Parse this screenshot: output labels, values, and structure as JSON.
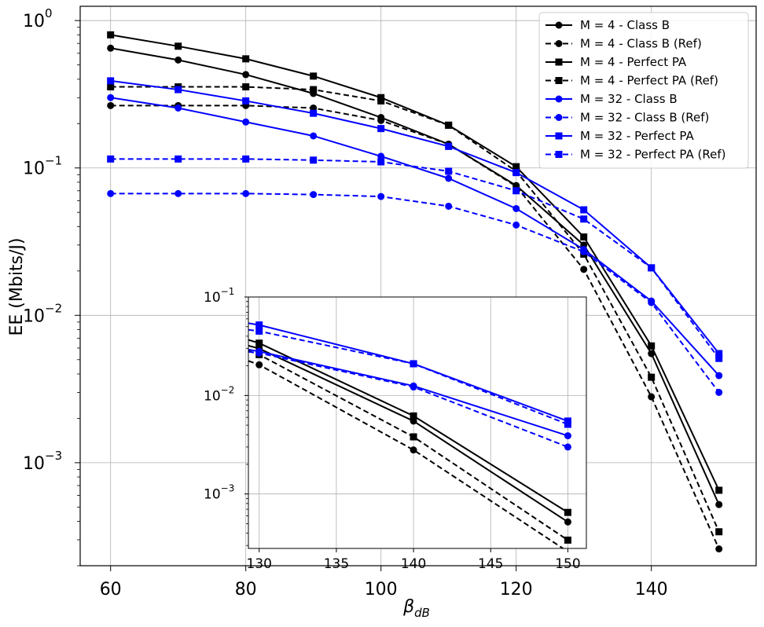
{
  "chart_data": [
    {
      "id": "main",
      "type": "line",
      "xlabel": "β",
      "xlabel_subscript": "dB",
      "ylabel": "EE (Mbits/J)",
      "xscale": "linear",
      "yscale": "log",
      "xlim": [
        55.5,
        155.5
      ],
      "ylim": [
        0.0002,
        1.25
      ],
      "xticks": [
        60,
        80,
        100,
        120,
        140
      ],
      "xtick_labels": [
        "60",
        "80",
        "100",
        "120",
        "140"
      ],
      "yticks": [
        0.001,
        0.01,
        0.1,
        1
      ],
      "ytick_labels": [
        {
          "base": "10",
          "exp": "−3"
        },
        {
          "base": "10",
          "exp": "−2"
        },
        {
          "base": "10",
          "exp": "−1"
        },
        {
          "base": "10",
          "exp": "0"
        }
      ],
      "grid": true,
      "legend_position": "top-right",
      "x": [
        60,
        70,
        80,
        90,
        100,
        110,
        120,
        130,
        140,
        150
      ],
      "series": [
        {
          "name": "M = 4 - Class B",
          "color": "#000000",
          "dash": "solid",
          "marker": "circle",
          "values": [
            0.65,
            0.54,
            0.43,
            0.32,
            0.22,
            0.145,
            0.076,
            0.03,
            0.0055,
            0.00052
          ]
        },
        {
          "name": "M = 4 - Class B (Ref)",
          "color": "#000000",
          "dash": "dashed",
          "marker": "circle",
          "values": [
            0.265,
            0.265,
            0.265,
            0.255,
            0.21,
            0.145,
            0.075,
            0.0205,
            0.0028,
            0.00026
          ]
        },
        {
          "name": "M = 4 - Perfect PA",
          "color": "#000000",
          "dash": "solid",
          "marker": "square",
          "values": [
            0.8,
            0.67,
            0.55,
            0.42,
            0.3,
            0.195,
            0.102,
            0.034,
            0.0062,
            0.00065
          ]
        },
        {
          "name": "M = 4 - Perfect PA (Ref)",
          "color": "#000000",
          "dash": "dashed",
          "marker": "square",
          "values": [
            0.355,
            0.355,
            0.355,
            0.34,
            0.285,
            0.195,
            0.095,
            0.026,
            0.0038,
            0.00034
          ]
        },
        {
          "name": "M = 32 - Class B",
          "color": "#0000ff",
          "dash": "solid",
          "marker": "circle",
          "values": [
            0.3,
            0.255,
            0.205,
            0.165,
            0.12,
            0.085,
            0.053,
            0.028,
            0.0125,
            0.0039
          ]
        },
        {
          "name": "M = 32 - Class B (Ref)",
          "color": "#0000ff",
          "dash": "dashed",
          "marker": "circle",
          "values": [
            0.067,
            0.067,
            0.067,
            0.066,
            0.064,
            0.055,
            0.041,
            0.027,
            0.0122,
            0.003
          ]
        },
        {
          "name": "M = 32 - Perfect PA",
          "color": "#0000ff",
          "dash": "solid",
          "marker": "square",
          "values": [
            0.39,
            0.34,
            0.285,
            0.235,
            0.185,
            0.14,
            0.093,
            0.052,
            0.021,
            0.0055
          ]
        },
        {
          "name": "M = 32 - Perfect PA (Ref)",
          "color": "#0000ff",
          "dash": "dashed",
          "marker": "square",
          "values": [
            0.115,
            0.115,
            0.115,
            0.113,
            0.11,
            0.095,
            0.07,
            0.045,
            0.021,
            0.0051
          ]
        }
      ]
    },
    {
      "id": "inset",
      "type": "line",
      "xscale": "linear",
      "yscale": "log",
      "xlim": [
        129.3,
        151.2
      ],
      "ylim": [
        0.00028,
        0.1
      ],
      "xticks": [
        130,
        135,
        140,
        145,
        150
      ],
      "xtick_labels": [
        "130",
        "135",
        "140",
        "145",
        "150"
      ],
      "yticks": [
        0.001,
        0.01,
        0.1
      ],
      "ytick_labels": [
        {
          "base": "10",
          "exp": "−3"
        },
        {
          "base": "10",
          "exp": "−2"
        },
        {
          "base": "10",
          "exp": "−1"
        }
      ],
      "grid": true,
      "x": [
        129.3,
        130,
        140,
        150
      ]
    }
  ]
}
